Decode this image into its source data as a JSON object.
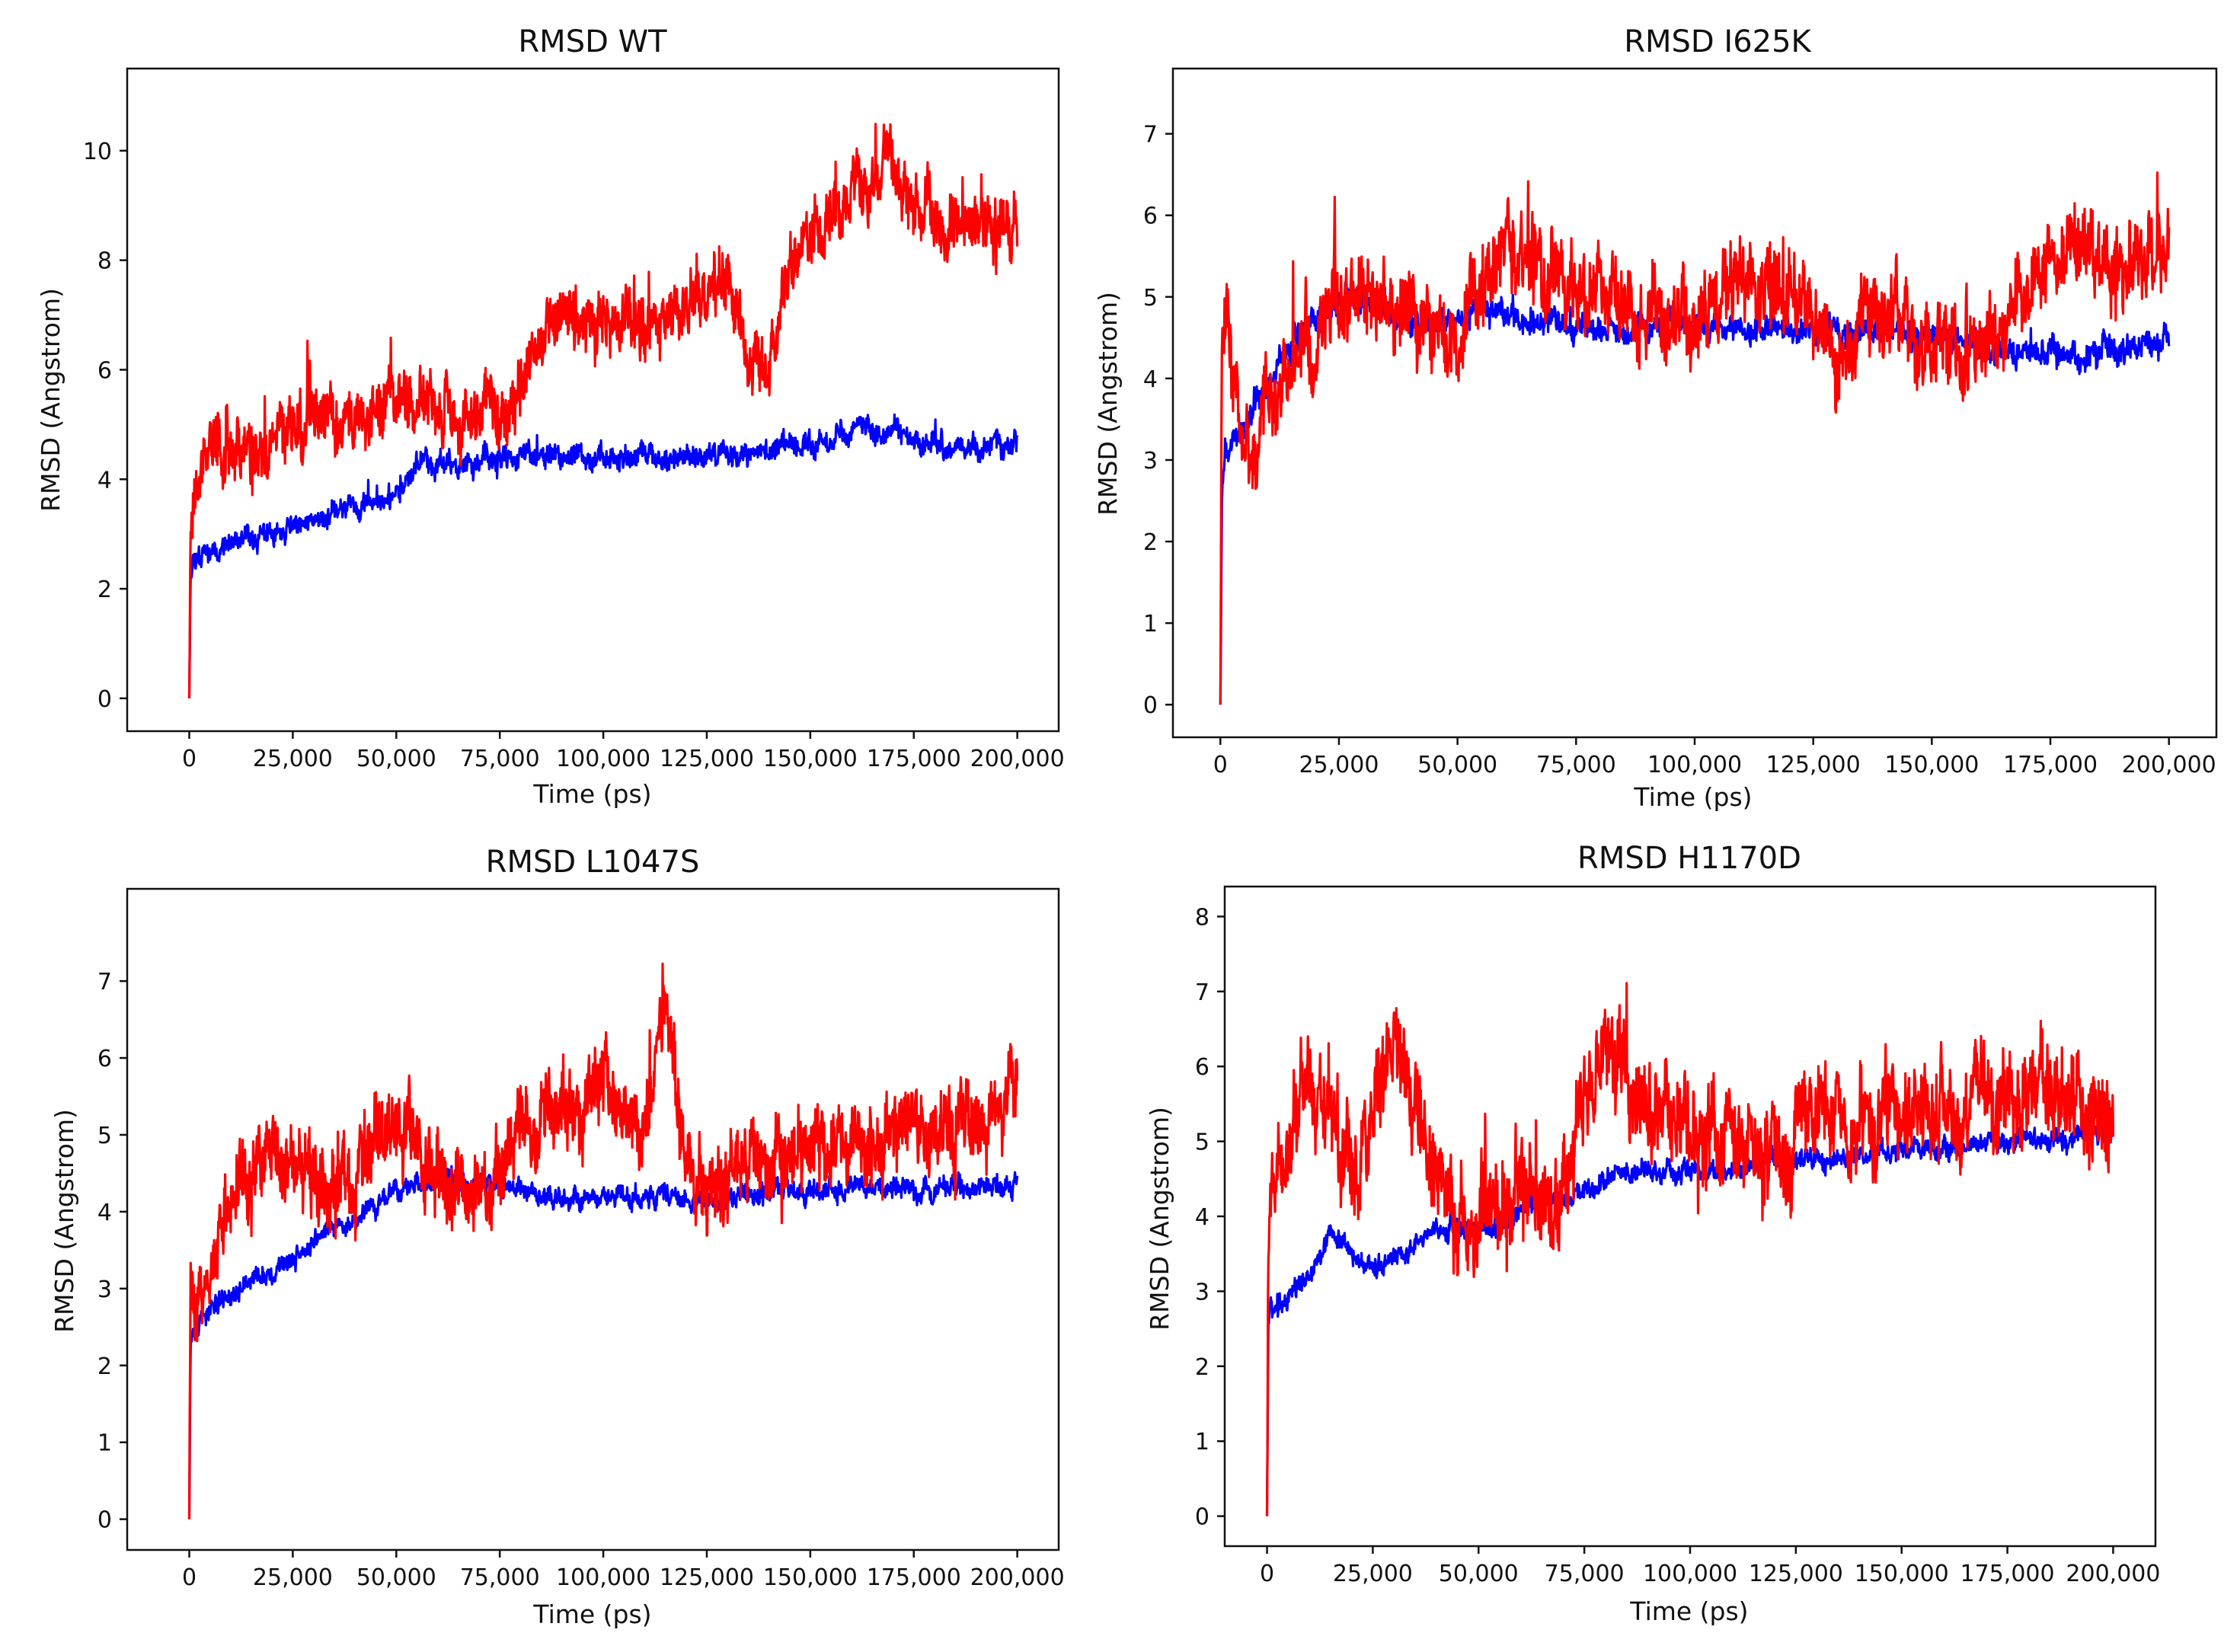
{
  "chart_data": [
    {
      "type": "line",
      "title": "RMSD WT",
      "xlabel": "Time (ps)",
      "ylabel": "RMSD (Angstrom)",
      "xlim": [
        -15000,
        210000
      ],
      "ylim": [
        -0.6,
        11.5
      ],
      "xticks": [
        0,
        25000,
        50000,
        75000,
        100000,
        125000,
        150000,
        175000,
        200000
      ],
      "xtick_labels": [
        "0",
        "25,000",
        "50,000",
        "75,000",
        "100,000",
        "125,000",
        "150,000",
        "175,000",
        "200,000"
      ],
      "yticks": [
        0,
        2,
        4,
        6,
        8,
        10
      ],
      "ytick_labels": [
        "0",
        "2",
        "4",
        "6",
        "8",
        "10"
      ],
      "series": [
        {
          "name": "blue",
          "color": "#0000ff",
          "noise": 0.18,
          "seed": 11,
          "x": [
            0,
            300,
            1000,
            5000,
            15000,
            25000,
            35000,
            45000,
            50000,
            55000,
            65000,
            75000,
            85000,
            95000,
            105000,
            115000,
            125000,
            135000,
            145000,
            155000,
            160000,
            165000,
            170000,
            175000,
            185000,
            195000,
            200000
          ],
          "y": [
            0,
            2.3,
            2.6,
            2.75,
            2.9,
            3.1,
            3.4,
            3.6,
            3.7,
            4.3,
            4.3,
            4.35,
            4.45,
            4.4,
            4.4,
            4.4,
            4.45,
            4.5,
            4.6,
            4.75,
            4.95,
            4.9,
            4.9,
            4.7,
            4.6,
            4.6,
            4.65
          ]
        },
        {
          "name": "red",
          "color": "#ff0000",
          "noise": 0.5,
          "seed": 23,
          "x": [
            0,
            300,
            1000,
            5000,
            15000,
            25000,
            35000,
            45000,
            50000,
            55000,
            65000,
            75000,
            80000,
            85000,
            90000,
            100000,
            110000,
            120000,
            130000,
            135000,
            140000,
            145000,
            155000,
            165000,
            170000,
            175000,
            185000,
            195000,
            200000
          ],
          "y": [
            0,
            3,
            3.9,
            4.6,
            4.5,
            5.0,
            5.0,
            5.2,
            5.6,
            5.4,
            5.0,
            5.5,
            5.6,
            6.8,
            7.0,
            7.0,
            6.8,
            7.2,
            7.5,
            6.5,
            6.0,
            8.0,
            8.8,
            9.6,
            9.8,
            9.0,
            8.6,
            8.7,
            8.8
          ]
        }
      ]
    },
    {
      "type": "line",
      "title": "RMSD I625K",
      "xlabel": "Time (ps)",
      "ylabel": "RMSD (Angstrom)",
      "xlim": [
        -10000,
        210000
      ],
      "ylim": [
        -0.4,
        7.8
      ],
      "xticks": [
        0,
        25000,
        50000,
        75000,
        100000,
        125000,
        150000,
        175000,
        200000
      ],
      "xtick_labels": [
        "0",
        "25,000",
        "50,000",
        "75,000",
        "100,000",
        "125,000",
        "150,000",
        "175,000",
        "200,000"
      ],
      "yticks": [
        0,
        1,
        2,
        3,
        4,
        5,
        6,
        7
      ],
      "ytick_labels": [
        "0",
        "1",
        "2",
        "3",
        "4",
        "5",
        "6",
        "7"
      ],
      "series": [
        {
          "name": "blue",
          "color": "#0000ff",
          "noise": 0.15,
          "seed": 31,
          "x": [
            0,
            300,
            1000,
            5000,
            15000,
            25000,
            35000,
            45000,
            55000,
            65000,
            75000,
            85000,
            95000,
            105000,
            115000,
            125000,
            135000,
            145000,
            155000,
            165000,
            175000,
            185000,
            195000,
            200000
          ],
          "y": [
            0,
            2.5,
            3.0,
            3.5,
            4.4,
            5.0,
            4.9,
            4.6,
            4.9,
            4.7,
            4.6,
            4.6,
            4.65,
            4.6,
            4.6,
            4.6,
            4.6,
            4.55,
            4.45,
            4.35,
            4.3,
            4.3,
            4.4,
            4.5
          ]
        },
        {
          "name": "red",
          "color": "#ff0000",
          "noise": 0.45,
          "seed": 47,
          "x": [
            0,
            300,
            1200,
            3000,
            7000,
            12000,
            20000,
            30000,
            40000,
            50000,
            60000,
            70000,
            80000,
            90000,
            100000,
            110000,
            120000,
            130000,
            140000,
            150000,
            160000,
            170000,
            180000,
            190000,
            200000
          ],
          "y": [
            0,
            4.3,
            4.9,
            3.6,
            3.1,
            4.0,
            4.6,
            5.1,
            4.9,
            4.4,
            5.7,
            5.3,
            5.0,
            4.7,
            4.9,
            5.2,
            5.0,
            4.5,
            4.8,
            4.3,
            4.4,
            5.1,
            5.8,
            5.2,
            5.6
          ]
        }
      ]
    },
    {
      "type": "line",
      "title": "RMSD L1047S",
      "xlabel": "Time (ps)",
      "ylabel": "RMSD (Angstrom)",
      "xlim": [
        -15000,
        210000
      ],
      "ylim": [
        -0.4,
        8.2
      ],
      "xticks": [
        0,
        25000,
        50000,
        75000,
        100000,
        125000,
        150000,
        175000,
        200000
      ],
      "xtick_labels": [
        "0",
        "25,000",
        "50,000",
        "75,000",
        "100,000",
        "125,000",
        "150,000",
        "175,000",
        "200,000"
      ],
      "yticks": [
        0,
        1,
        2,
        3,
        4,
        5,
        6,
        7
      ],
      "ytick_labels": [
        "0",
        "1",
        "2",
        "3",
        "4",
        "5",
        "6",
        "7"
      ],
      "series": [
        {
          "name": "blue",
          "color": "#0000ff",
          "noise": 0.12,
          "seed": 53,
          "x": [
            0,
            300,
            1000,
            5000,
            15000,
            25000,
            35000,
            45000,
            55000,
            65000,
            75000,
            85000,
            95000,
            105000,
            115000,
            125000,
            135000,
            145000,
            155000,
            165000,
            175000,
            185000,
            195000,
            200000
          ],
          "y": [
            0,
            2.3,
            2.5,
            2.7,
            3.1,
            3.4,
            3.8,
            4.1,
            4.35,
            4.4,
            4.4,
            4.2,
            4.2,
            4.2,
            4.25,
            4.15,
            4.2,
            4.3,
            4.3,
            4.3,
            4.3,
            4.3,
            4.35,
            4.35
          ]
        },
        {
          "name": "red",
          "color": "#ff0000",
          "noise": 0.45,
          "seed": 61,
          "x": [
            0,
            300,
            1500,
            5000,
            12000,
            20000,
            30000,
            40000,
            50000,
            60000,
            70000,
            80000,
            90000,
            100000,
            110000,
            115000,
            120000,
            125000,
            135000,
            145000,
            155000,
            165000,
            175000,
            185000,
            195000,
            200000
          ],
          "y": [
            0,
            3.2,
            2.6,
            3.2,
            4.3,
            4.7,
            4.3,
            4.5,
            5.2,
            4.4,
            4.3,
            5.0,
            5.3,
            5.6,
            5.0,
            6.6,
            4.6,
            4.1,
            4.6,
            4.8,
            4.9,
            4.8,
            5.0,
            5.0,
            5.3,
            5.6
          ]
        }
      ]
    },
    {
      "type": "line",
      "title": "RMSD H1170D",
      "xlabel": "Time (ps)",
      "ylabel": "RMSD (Angstrom)",
      "xlim": [
        -10000,
        210000
      ],
      "ylim": [
        -0.4,
        8.4
      ],
      "xticks": [
        0,
        25000,
        50000,
        75000,
        100000,
        125000,
        150000,
        175000,
        200000
      ],
      "xtick_labels": [
        "0",
        "25,000",
        "50,000",
        "75,000",
        "100,000",
        "125,000",
        "150,000",
        "175,000",
        "200,000"
      ],
      "yticks": [
        0,
        1,
        2,
        3,
        4,
        5,
        6,
        7,
        8
      ],
      "ytick_labels": [
        "0",
        "1",
        "2",
        "3",
        "4",
        "5",
        "6",
        "7",
        "8"
      ],
      "series": [
        {
          "name": "blue",
          "color": "#0000ff",
          "noise": 0.12,
          "seed": 71,
          "x": [
            0,
            300,
            1000,
            5000,
            12000,
            15000,
            20000,
            25000,
            35000,
            45000,
            55000,
            65000,
            75000,
            85000,
            95000,
            105000,
            115000,
            125000,
            135000,
            145000,
            155000,
            165000,
            175000,
            185000,
            195000,
            200000
          ],
          "y": [
            0,
            2.6,
            2.8,
            2.9,
            3.4,
            3.8,
            3.5,
            3.3,
            3.6,
            3.9,
            3.9,
            4.2,
            4.3,
            4.6,
            4.6,
            4.6,
            4.7,
            4.8,
            4.8,
            4.85,
            4.9,
            4.9,
            5.0,
            5.0,
            5.1,
            5.1
          ]
        },
        {
          "name": "red",
          "color": "#ff0000",
          "noise": 0.55,
          "seed": 89,
          "x": [
            0,
            300,
            1500,
            5000,
            10000,
            15000,
            20000,
            25000,
            30000,
            35000,
            40000,
            50000,
            60000,
            70000,
            75000,
            80000,
            90000,
            100000,
            110000,
            120000,
            130000,
            140000,
            150000,
            160000,
            170000,
            180000,
            190000,
            200000
          ],
          "y": [
            0,
            3.5,
            4.2,
            5.0,
            5.8,
            5.4,
            4.5,
            5.2,
            6.3,
            5.6,
            4.5,
            4.0,
            4.2,
            4.3,
            5.5,
            6.2,
            5.4,
            5.2,
            5.0,
            4.8,
            5.5,
            5.2,
            5.3,
            5.3,
            5.4,
            5.7,
            5.5,
            5.4
          ]
        }
      ]
    }
  ]
}
